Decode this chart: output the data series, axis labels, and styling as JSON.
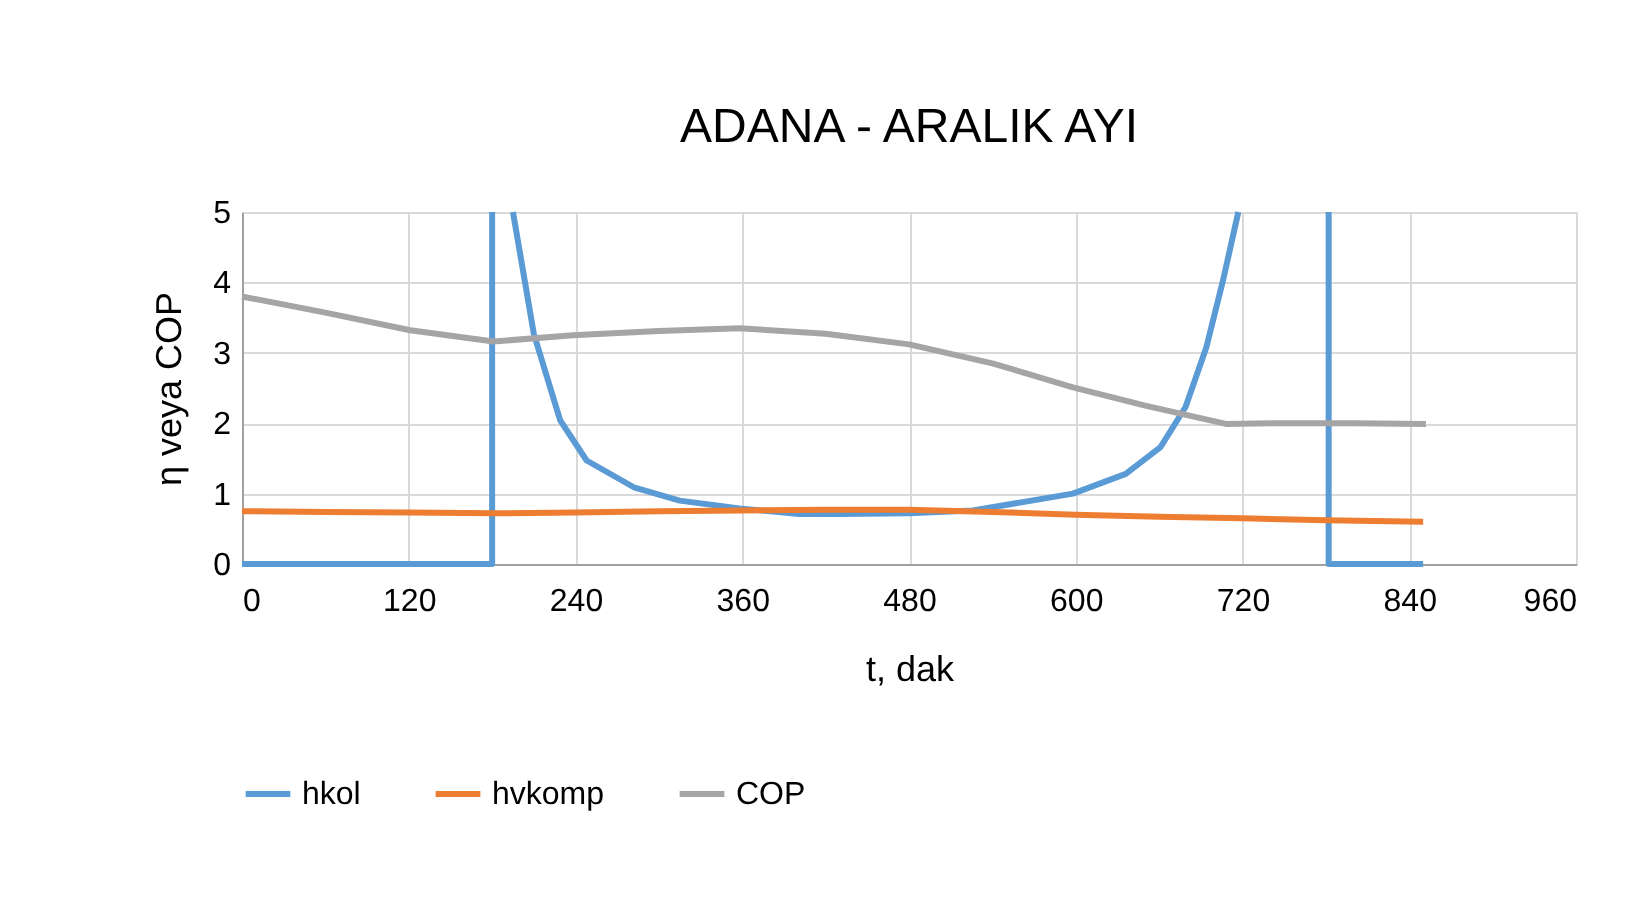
{
  "chart_data": {
    "type": "line",
    "title": "ADANA - ARALIK AYI",
    "xlabel": "t, dak",
    "ylabel": "η veya COP",
    "xlim": [
      0,
      960
    ],
    "xticks": [
      0,
      120,
      240,
      360,
      480,
      600,
      720,
      840,
      960
    ],
    "ylim": [
      0,
      5
    ],
    "yticks": [
      0,
      1,
      2,
      3,
      4,
      5
    ],
    "grid": true,
    "legend": "bottom",
    "line_style": "solid",
    "marker": "none",
    "series": [
      {
        "name": "hkol",
        "color": "#5b9bd5",
        "x": [
          0,
          180,
          180,
          187,
          195,
          210,
          229,
          248,
          282,
          315,
          358,
          401,
          430,
          480,
          526,
          598,
          636,
          661,
          679,
          694,
          706,
          717,
          750,
          782,
          782,
          850
        ],
        "values": [
          0,
          0,
          5,
          null,
          5,
          3.27,
          2.04,
          1.47,
          1.09,
          0.9,
          0.79,
          0.71,
          0.71,
          0.72,
          0.76,
          1.0,
          1.28,
          1.66,
          2.23,
          3.08,
          4.03,
          5,
          null,
          5,
          0,
          0
        ]
      },
      {
        "name": "hvkomp",
        "color": "#ed7d31",
        "x": [
          0,
          60,
          120,
          180,
          240,
          300,
          360,
          420,
          480,
          540,
          600,
          660,
          720,
          780,
          850
        ],
        "values": [
          0.75,
          0.74,
          0.73,
          0.72,
          0.73,
          0.75,
          0.76,
          0.77,
          0.77,
          0.74,
          0.7,
          0.67,
          0.65,
          0.62,
          0.6
        ]
      },
      {
        "name": "COP",
        "color": "#a5a5a5",
        "x": [
          0,
          60,
          121,
          181,
          238,
          300,
          358,
          420,
          480,
          540,
          598,
          650,
          708,
          750,
          800,
          852
        ],
        "values": [
          3.8,
          3.57,
          3.32,
          3.16,
          3.25,
          3.31,
          3.35,
          3.27,
          3.12,
          2.85,
          2.51,
          2.25,
          1.99,
          2.0,
          2.0,
          1.99
        ]
      }
    ]
  }
}
